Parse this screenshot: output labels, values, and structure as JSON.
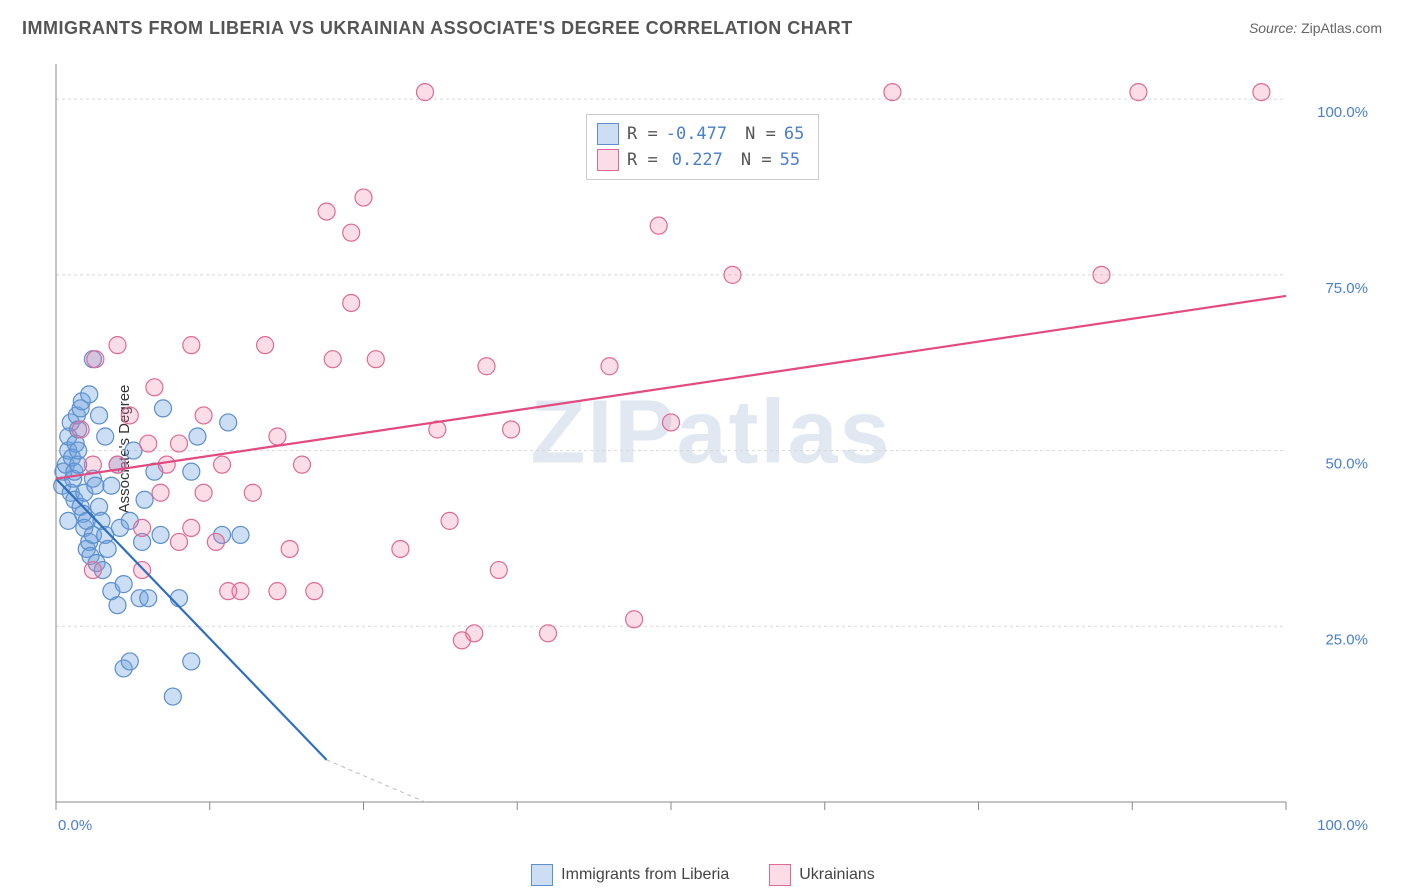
{
  "title": "IMMIGRANTS FROM LIBERIA VS UKRAINIAN ASSOCIATE'S DEGREE CORRELATION CHART",
  "source_label": "Source:",
  "source_value": "ZipAtlas.com",
  "y_axis_label": "Associate's Degree",
  "watermark_a": "ZIP",
  "watermark_b": "atlas",
  "chart": {
    "type": "scatter",
    "background_color": "#ffffff",
    "grid_color": "#d8d8d8",
    "axis_color": "#888888",
    "tick_label_color": "#4a7fc9",
    "xlim": [
      0,
      100
    ],
    "ylim": [
      0,
      105
    ],
    "x_tick_positions": [
      0,
      12.5,
      25,
      37.5,
      50,
      62.5,
      75,
      87.5,
      100
    ],
    "x_tick_labels": {
      "0": "0.0%",
      "100": "100.0%"
    },
    "y_tick_positions": [
      25,
      50,
      75,
      100
    ],
    "y_tick_labels": {
      "25": "25.0%",
      "50": "50.0%",
      "75": "75.0%",
      "100": "100.0%"
    },
    "marker_radius": 8.5,
    "marker_stroke_width": 1.2,
    "line_width": 2.2,
    "series": [
      {
        "name": "Immigrants from Liberia",
        "color_fill": "rgba(108,160,220,0.35)",
        "color_stroke": "#5b8fce",
        "line_color": "#2f6fc0",
        "r_value": "-0.477",
        "n_value": "65",
        "trend": {
          "x1": 0,
          "y1": 46,
          "x2": 22,
          "y2": 6,
          "extend_x2": 30,
          "extend_y2": -8
        },
        "points": [
          [
            0.5,
            45
          ],
          [
            0.6,
            47
          ],
          [
            0.8,
            48
          ],
          [
            1,
            50
          ],
          [
            1,
            52
          ],
          [
            1.2,
            54
          ],
          [
            1.2,
            44
          ],
          [
            1.3,
            49
          ],
          [
            1.4,
            46
          ],
          [
            1.5,
            47
          ],
          [
            1.5,
            43
          ],
          [
            1.6,
            51
          ],
          [
            1.7,
            55
          ],
          [
            1.8,
            53
          ],
          [
            1.8,
            48
          ],
          [
            2,
            56
          ],
          [
            2,
            42
          ],
          [
            2.1,
            57
          ],
          [
            2.2,
            41
          ],
          [
            2.3,
            39
          ],
          [
            2.3,
            44
          ],
          [
            2.5,
            40
          ],
          [
            2.5,
            36
          ],
          [
            2.7,
            37
          ],
          [
            2.7,
            58
          ],
          [
            2.8,
            35
          ],
          [
            3,
            46
          ],
          [
            3,
            63
          ],
          [
            3,
            38
          ],
          [
            3.2,
            45
          ],
          [
            3.3,
            34
          ],
          [
            3.5,
            42
          ],
          [
            3.5,
            55
          ],
          [
            3.7,
            40
          ],
          [
            3.8,
            33
          ],
          [
            4,
            52
          ],
          [
            4,
            38
          ],
          [
            4.2,
            36
          ],
          [
            4.5,
            30
          ],
          [
            4.5,
            45
          ],
          [
            5,
            28
          ],
          [
            5,
            48
          ],
          [
            5.2,
            39
          ],
          [
            5.5,
            19
          ],
          [
            5.5,
            31
          ],
          [
            6,
            20
          ],
          [
            6,
            40
          ],
          [
            6.3,
            50
          ],
          [
            6.8,
            29
          ],
          [
            7,
            37
          ],
          [
            7.2,
            43
          ],
          [
            7.5,
            29
          ],
          [
            8,
            47
          ],
          [
            8.5,
            38
          ],
          [
            8.7,
            56
          ],
          [
            9.5,
            15
          ],
          [
            10,
            29
          ],
          [
            11,
            20
          ],
          [
            11,
            47
          ],
          [
            11.5,
            52
          ],
          [
            13.5,
            38
          ],
          [
            14,
            54
          ],
          [
            15,
            38
          ],
          [
            1,
            40
          ],
          [
            1.8,
            50
          ]
        ]
      },
      {
        "name": "Ukrainians",
        "color_fill": "rgba(236,120,160,0.25)",
        "color_stroke": "#e06a95",
        "line_color": "#e24a80",
        "r_value": "0.227",
        "n_value": "55",
        "trend": {
          "x1": 0,
          "y1": 46,
          "x2": 100,
          "y2": 72
        },
        "points": [
          [
            2,
            53
          ],
          [
            3,
            48
          ],
          [
            3,
            33
          ],
          [
            3.2,
            63
          ],
          [
            5,
            65
          ],
          [
            5,
            48
          ],
          [
            6,
            55
          ],
          [
            7,
            33
          ],
          [
            7,
            39
          ],
          [
            7.5,
            51
          ],
          [
            8,
            59
          ],
          [
            8.5,
            44
          ],
          [
            9,
            48
          ],
          [
            10,
            51
          ],
          [
            10,
            37
          ],
          [
            11,
            39
          ],
          [
            11,
            65
          ],
          [
            12,
            44
          ],
          [
            12,
            55
          ],
          [
            13,
            37
          ],
          [
            13.5,
            48
          ],
          [
            14,
            30
          ],
          [
            15,
            30
          ],
          [
            16,
            44
          ],
          [
            17,
            65
          ],
          [
            18,
            30
          ],
          [
            18,
            52
          ],
          [
            19,
            36
          ],
          [
            20,
            48
          ],
          [
            21,
            30
          ],
          [
            22,
            84
          ],
          [
            22.5,
            63
          ],
          [
            24,
            81
          ],
          [
            24,
            71
          ],
          [
            25,
            86
          ],
          [
            26,
            63
          ],
          [
            28,
            36
          ],
          [
            30,
            101
          ],
          [
            31,
            53
          ],
          [
            32,
            40
          ],
          [
            33,
            23
          ],
          [
            34,
            24
          ],
          [
            35,
            62
          ],
          [
            36,
            33
          ],
          [
            37,
            53
          ],
          [
            40,
            24
          ],
          [
            45,
            62
          ],
          [
            47,
            26
          ],
          [
            49,
            82
          ],
          [
            50,
            54
          ],
          [
            55,
            75
          ],
          [
            68,
            101
          ],
          [
            85,
            75
          ],
          [
            88,
            101
          ],
          [
            98,
            101
          ]
        ]
      }
    ]
  },
  "legend_top": {
    "r_label": "R =",
    "n_label": "N ="
  },
  "bottom_legend": {
    "items": [
      "Immigrants from Liberia",
      "Ukrainians"
    ]
  }
}
